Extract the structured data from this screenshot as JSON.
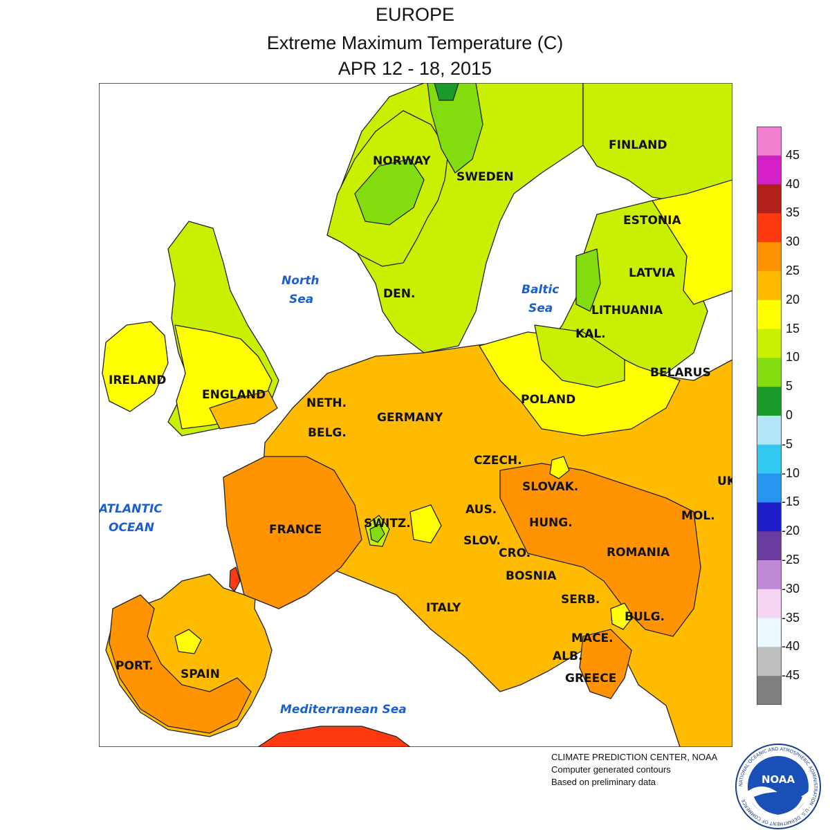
{
  "title": {
    "line1": "EUROPE",
    "line2": "Extreme Maximum Temperature (C)",
    "line3": "APR 12 - 18, 2015"
  },
  "legend": {
    "labels": [
      "45",
      "40",
      "35",
      "30",
      "25",
      "20",
      "15",
      "10",
      "5",
      "0",
      "-5",
      "-10",
      "-15",
      "-20",
      "-25",
      "-30",
      "-35",
      "-40",
      "-45"
    ],
    "colors": [
      "#f07fd0",
      "#d21fc6",
      "#b0201a",
      "#ff3a10",
      "#ff9400",
      "#ffbb00",
      "#ffff00",
      "#c8f000",
      "#82dc10",
      "#1a9a2a",
      "#b4e6f8",
      "#32c8f0",
      "#2896f0",
      "#1e1ec8",
      "#6a3ca0",
      "#c08ad8",
      "#f6d4f4",
      "#ecf8ff",
      "#bebebe",
      "#7f7f7f"
    ]
  },
  "map": {
    "countries": [
      {
        "label": "NORWAY"
      },
      {
        "label": "SWEDEN"
      },
      {
        "label": "FINLAND"
      },
      {
        "label": "ESTONIA"
      },
      {
        "label": "LATVIA"
      },
      {
        "label": "LITHUANIA"
      },
      {
        "label": "KAL."
      },
      {
        "label": "DEN."
      },
      {
        "label": "BELARUS"
      },
      {
        "label": "IRELAND"
      },
      {
        "label": "ENGLAND"
      },
      {
        "label": "NETH."
      },
      {
        "label": "GERMANY"
      },
      {
        "label": "POLAND"
      },
      {
        "label": "BELG."
      },
      {
        "label": "CZECH."
      },
      {
        "label": "SLOVAK."
      },
      {
        "label": "UK"
      },
      {
        "label": "AUS."
      },
      {
        "label": "HUNG."
      },
      {
        "label": "MOL."
      },
      {
        "label": "FRANCE"
      },
      {
        "label": "SWITZ."
      },
      {
        "label": "SLOV."
      },
      {
        "label": "CRO."
      },
      {
        "label": "ROMANIA"
      },
      {
        "label": "BOSNIA"
      },
      {
        "label": "SERB."
      },
      {
        "label": "ITALY"
      },
      {
        "label": "BULG."
      },
      {
        "label": "MACE."
      },
      {
        "label": "ALB."
      },
      {
        "label": "GREECE"
      },
      {
        "label": "PORT."
      },
      {
        "label": "SPAIN"
      }
    ],
    "seas": [
      {
        "lines": [
          "North",
          "Sea"
        ]
      },
      {
        "lines": [
          "Baltic",
          "Sea"
        ]
      },
      {
        "lines": [
          "ATLANTIC",
          "OCEAN"
        ]
      },
      {
        "lines": [
          "Mediterranean Sea"
        ]
      }
    ]
  },
  "credit": {
    "line1": "CLIMATE PREDICTION CENTER, NOAA",
    "line2": "Computer generated contours",
    "line3": "Based on preliminary data"
  },
  "logo": {
    "text": "NOAA",
    "ring_text": "NATIONAL OCEANIC AND ATMOSPHERIC ADMINISTRATION · U.S. DEPARTMENT OF COMMERCE"
  }
}
